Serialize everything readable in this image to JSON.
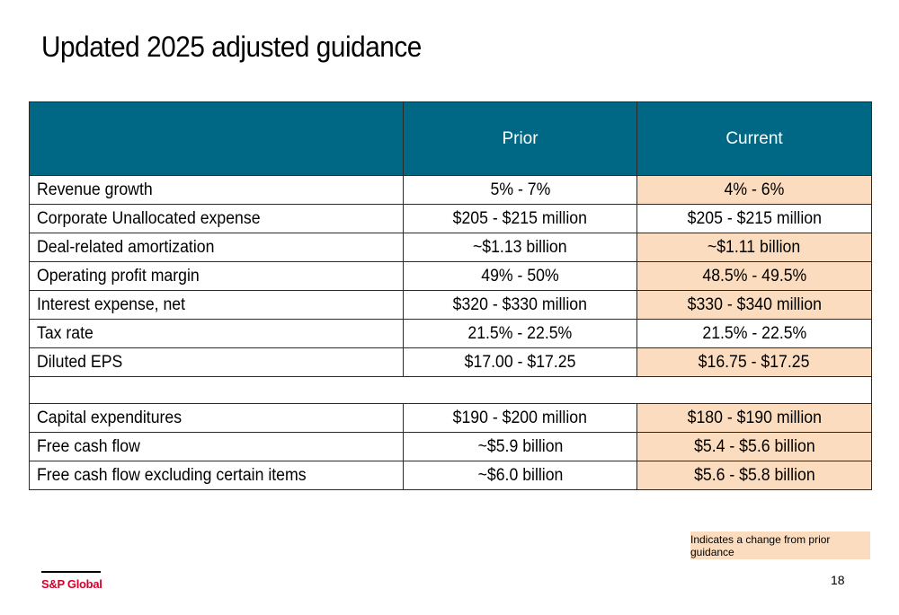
{
  "title": "Updated 2025 adjusted guidance",
  "colors": {
    "header_bg": "#006885",
    "changed_bg": "#fbdcbe",
    "brand": "#d6002a"
  },
  "table": {
    "headers": {
      "label": "",
      "prior": "Prior",
      "current": "Current"
    },
    "section1": [
      {
        "label": "Revenue growth",
        "prior": "5% - 7%",
        "current": "4% - 6%",
        "changed": true
      },
      {
        "label": "Corporate Unallocated expense",
        "prior": "$205 - $215 million",
        "current": "$205 - $215 million",
        "changed": false
      },
      {
        "label": "Deal-related amortization",
        "prior": "~$1.13 billion",
        "current": "~$1.11 billion",
        "changed": true
      },
      {
        "label": "Operating profit margin",
        "prior": "49% - 50%",
        "current": "48.5% - 49.5%",
        "changed": true
      },
      {
        "label": "Interest expense, net",
        "prior": "$320 - $330 million",
        "current": "$330 - $340 million",
        "changed": true
      },
      {
        "label": "Tax rate",
        "prior": "21.5% - 22.5%",
        "current": "21.5% - 22.5%",
        "changed": false
      },
      {
        "label": "Diluted EPS",
        "prior": "$17.00 - $17.25",
        "current": "$16.75 - $17.25",
        "changed": true
      }
    ],
    "section2": [
      {
        "label": "Capital expenditures",
        "prior": "$190 - $200 million",
        "current": "$180 - $190 million",
        "changed": true
      },
      {
        "label": "Free cash flow",
        "prior": "~$5.9 billion",
        "current": "$5.4 - $5.6 billion",
        "changed": true
      },
      {
        "label": "Free cash flow excluding certain items",
        "prior": "~$6.0 billion",
        "current": "$5.6 - $5.8 billion",
        "changed": true
      }
    ]
  },
  "legend": "Indicates a change from prior guidance",
  "logo": "S&P Global",
  "page_number": "18"
}
